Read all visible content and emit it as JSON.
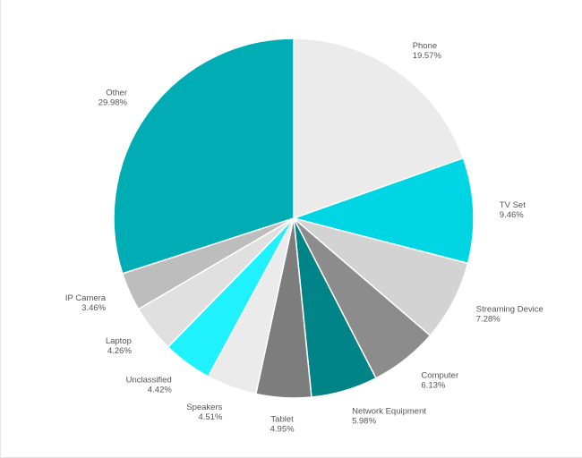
{
  "chart_data": {
    "type": "pie",
    "title": "",
    "start_angle_deg": 0,
    "direction": "clockwise",
    "slices": [
      {
        "label": "Phone",
        "value": 19.57,
        "value_text": "19.57%",
        "color": "#ebebeb"
      },
      {
        "label": "TV Set",
        "value": 9.46,
        "value_text": "9.46%",
        "color": "#00d6e3"
      },
      {
        "label": "Streaming Device",
        "value": 7.28,
        "value_text": "7.28%",
        "color": "#d3d3d3"
      },
      {
        "label": "Computer",
        "value": 6.13,
        "value_text": "6.13%",
        "color": "#8c8c8c"
      },
      {
        "label": "Network Equipment",
        "value": 5.98,
        "value_text": "5.98%",
        "color": "#008487"
      },
      {
        "label": "Tablet",
        "value": 4.95,
        "value_text": "4.95%",
        "color": "#7d7d7d"
      },
      {
        "label": "Speakers",
        "value": 4.51,
        "value_text": "4.51%",
        "color": "#ebebeb"
      },
      {
        "label": "Unclassified",
        "value": 4.42,
        "value_text": "4.42%",
        "color": "#1ff1ff"
      },
      {
        "label": "Laptop",
        "value": 4.26,
        "value_text": "4.26%",
        "color": "#e0e0e0"
      },
      {
        "label": "IP Camera",
        "value": 3.46,
        "value_text": "3.46%",
        "color": "#bdbdbd"
      },
      {
        "label": "Other",
        "value": 29.98,
        "value_text": "29.98%",
        "color": "#00adb5"
      }
    ]
  }
}
